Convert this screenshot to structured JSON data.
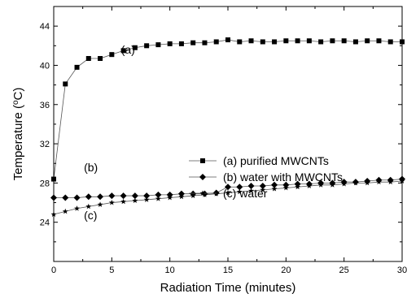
{
  "chart_data": {
    "type": "line",
    "xlabel": "Radiation Time (minutes)",
    "ylabel_main": "Temperature (",
    "ylabel_sup": "o",
    "ylabel_tail": "C)",
    "xlim": [
      0,
      30
    ],
    "ylim": [
      20,
      46
    ],
    "x_ticks": [
      0,
      5,
      10,
      15,
      20,
      25,
      30
    ],
    "y_ticks": [
      24,
      28,
      32,
      36,
      40,
      44
    ],
    "grid": false,
    "legend_position": "center-right",
    "annotations": [
      {
        "text": "(a)",
        "x": 5.8,
        "y": 41.2
      },
      {
        "text": "(b)",
        "x": 2.6,
        "y": 29.2
      },
      {
        "text": "(c)",
        "x": 2.6,
        "y": 24.3
      }
    ],
    "series": [
      {
        "name": "(a) purified MWCNTs",
        "marker": "square",
        "x": [
          0,
          1,
          2,
          3,
          4,
          5,
          6,
          7,
          8,
          9,
          10,
          11,
          12,
          13,
          14,
          15,
          16,
          17,
          18,
          19,
          20,
          21,
          22,
          23,
          24,
          25,
          26,
          27,
          28,
          29,
          30
        ],
        "values": [
          28.4,
          38.1,
          39.8,
          40.7,
          40.7,
          41.1,
          41.5,
          41.8,
          42.0,
          42.1,
          42.2,
          42.2,
          42.3,
          42.3,
          42.4,
          42.6,
          42.4,
          42.5,
          42.4,
          42.4,
          42.5,
          42.5,
          42.5,
          42.4,
          42.5,
          42.5,
          42.4,
          42.5,
          42.5,
          42.4,
          42.4
        ]
      },
      {
        "name": "(b) water with MWCNTs",
        "marker": "diamond",
        "x": [
          0,
          1,
          2,
          3,
          4,
          5,
          6,
          7,
          8,
          9,
          10,
          11,
          12,
          13,
          14,
          15,
          16,
          17,
          18,
          19,
          20,
          21,
          22,
          23,
          24,
          25,
          26,
          27,
          28,
          29,
          30
        ],
        "values": [
          26.5,
          26.5,
          26.5,
          26.6,
          26.6,
          26.7,
          26.7,
          26.7,
          26.7,
          26.8,
          26.8,
          26.9,
          26.9,
          26.9,
          27.0,
          27.6,
          27.6,
          27.7,
          27.7,
          27.8,
          27.8,
          27.9,
          27.9,
          28.0,
          28.0,
          28.1,
          28.1,
          28.2,
          28.3,
          28.3,
          28.4
        ]
      },
      {
        "name": "(c) water",
        "marker": "star",
        "x": [
          0,
          1,
          2,
          3,
          4,
          5,
          6,
          7,
          8,
          9,
          10,
          11,
          12,
          13,
          14,
          15,
          16,
          17,
          18,
          19,
          20,
          21,
          22,
          23,
          24,
          25,
          26,
          27,
          28,
          29,
          30
        ],
        "values": [
          24.8,
          25.1,
          25.4,
          25.6,
          25.8,
          26.0,
          26.1,
          26.2,
          26.3,
          26.4,
          26.5,
          26.6,
          26.7,
          26.8,
          26.9,
          27.0,
          27.1,
          27.2,
          27.3,
          27.4,
          27.5,
          27.6,
          27.7,
          27.8,
          27.8,
          27.9,
          28.0,
          28.0,
          28.1,
          28.1,
          28.2
        ]
      }
    ]
  }
}
